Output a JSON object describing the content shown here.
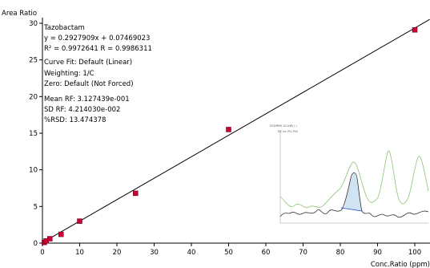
{
  "chart_data": {
    "type": "scatter",
    "ylabel": "Area Ratio",
    "xlabel": "Conc.Ratio (ppm)",
    "xlim": [
      0,
      100
    ],
    "ylim": [
      0,
      30
    ],
    "x_ticks": [
      0,
      10,
      20,
      30,
      40,
      50,
      60,
      70,
      80,
      90,
      100
    ],
    "y_ticks": [
      0,
      5,
      10,
      15,
      20,
      25,
      30
    ],
    "grid": false,
    "series": [
      {
        "points": [
          {
            "x": 0.5,
            "y": 0.1
          },
          {
            "x": 1,
            "y": 0.3
          },
          {
            "x": 2,
            "y": 0.6
          },
          {
            "x": 5,
            "y": 1.2
          },
          {
            "x": 10,
            "y": 3.0
          },
          {
            "x": 25,
            "y": 6.8
          },
          {
            "x": 50,
            "y": 15.5
          },
          {
            "x": 100,
            "y": 29.1
          }
        ],
        "color": "#cc0033"
      }
    ],
    "fit_line": {
      "slope": 0.2927909,
      "intercept": 0.07469023,
      "color": "#000000"
    },
    "annotations": [
      "Tazobactam",
      "y = 0.2927909x + 0.07469023",
      "R² = 0.9972641    R = 0.9986311",
      "Curve Fit: Default (Linear)",
      "Weighting: 1/C",
      "Zero: Default (Not Forced)",
      "Mean RF: 3.127439e-001",
      "SD RF: 4.214030e-002",
      "%RSD: 13.474378"
    ],
    "inset": {
      "description_colors": {
        "trace_green": "#8cc47a",
        "trace_black": "#333333",
        "peak_fill": "#cfe3f2",
        "baseline": "#2244cc"
      },
      "header_text": "EIC(MRM) 10.0(W) (-)",
      "legend_text": "EIC  Int.  Pk1  Pk2"
    }
  }
}
